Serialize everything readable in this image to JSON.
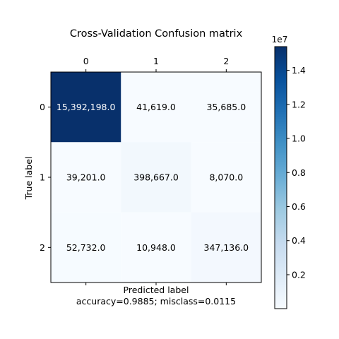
{
  "chart_data": {
    "type": "heatmap",
    "title": "Cross-Validation Confusion matrix",
    "x_categories": [
      "0",
      "1",
      "2"
    ],
    "y_categories": [
      "0",
      "1",
      "2"
    ],
    "xlabel": "Predicted label",
    "ylabel": "True label",
    "footer": "accuracy=0.9885; misclass=0.0115",
    "values": [
      [
        15392198,
        41619,
        35685
      ],
      [
        39201,
        398667,
        8070
      ],
      [
        52732,
        10948,
        347136
      ]
    ],
    "cell_labels": [
      [
        "15,392,198.0",
        "41,619.0",
        "35,685.0"
      ],
      [
        "39,201.0",
        "398,667.0",
        "8,070.0"
      ],
      [
        "52,732.0",
        "10,948.0",
        "347,136.0"
      ]
    ],
    "colormap": "Blues",
    "color_range": [
      8070,
      15392198
    ],
    "colorbar": {
      "ticks": [
        0.2,
        0.4,
        0.6,
        0.8,
        1.0,
        1.2,
        1.4
      ],
      "tick_labels": [
        "0.2",
        "0.4",
        "0.6",
        "0.8",
        "1.0",
        "1.2",
        "1.4"
      ],
      "multiplier": "1e7"
    },
    "grid": false,
    "colors": {
      "low": "#f7fbff",
      "high": "#08306b",
      "dark_text": "#000000",
      "light_text": "#ffffff"
    }
  }
}
